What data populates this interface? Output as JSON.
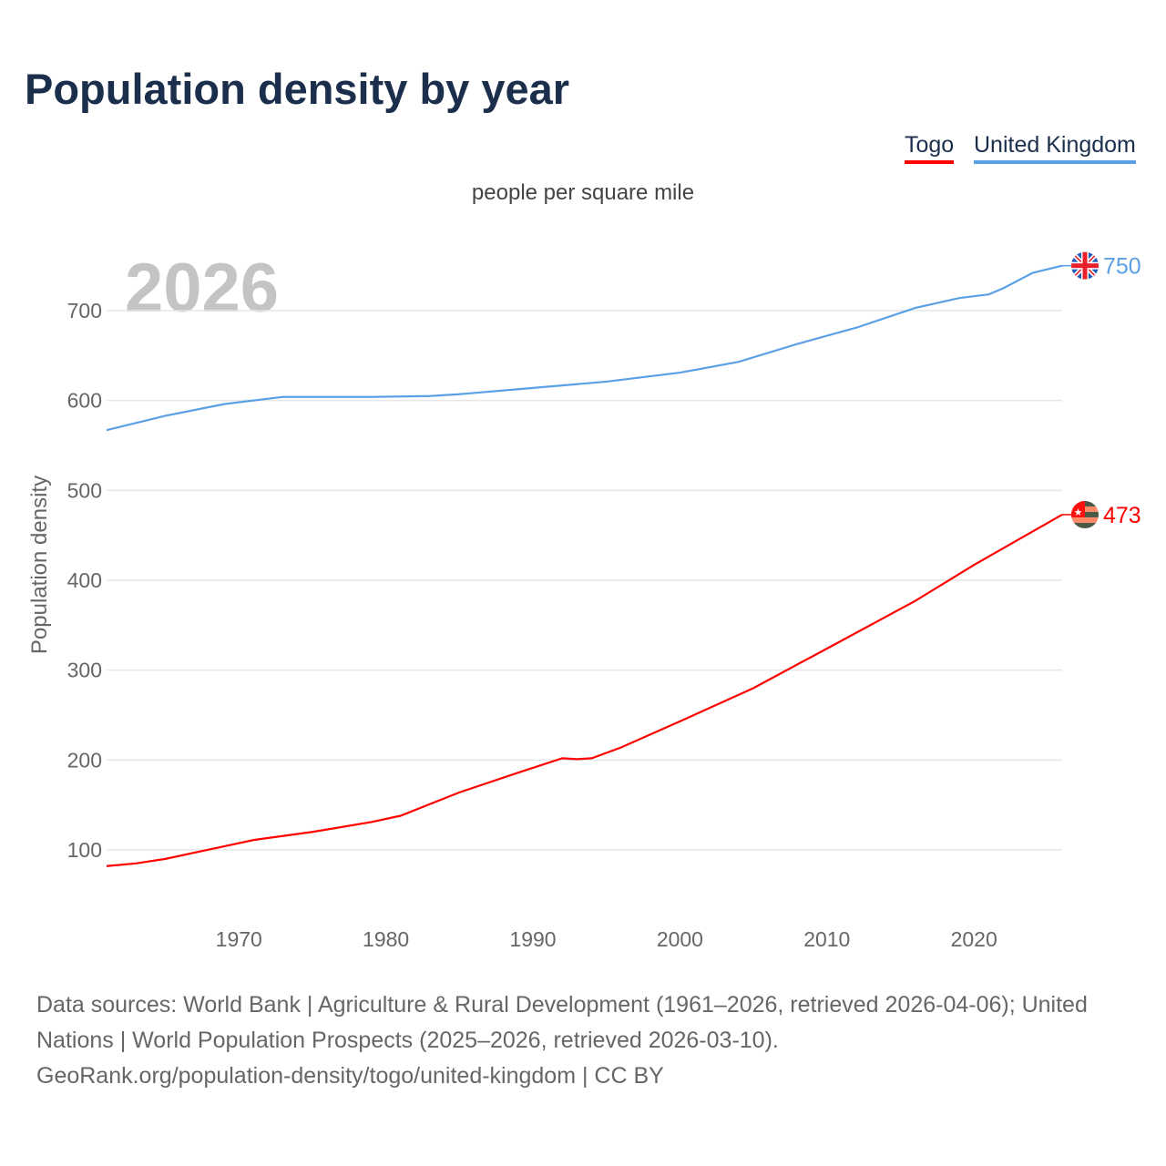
{
  "title": "Population density by year",
  "subtitle": "people per square mile",
  "year_watermark": "2026",
  "footer": {
    "line1": "Data sources: World Bank | Agriculture & Rural Development (1961–2026, retrieved 2026-04-06); United Nations | World Population Prospects (2025–2026, retrieved 2026-03-10).",
    "line2": "GeoRank.org/population-density/togo/united-kingdom | CC BY"
  },
  "chart_data": {
    "type": "line",
    "title": "Population density by year",
    "ylabel": "Population density",
    "xlabel": "",
    "xlim": [
      1961,
      2026
    ],
    "ylim": [
      50,
      760
    ],
    "yticks": [
      100,
      200,
      300,
      400,
      500,
      600,
      700
    ],
    "xticks": [
      1970,
      1980,
      1990,
      2000,
      2010,
      2020
    ],
    "grid": true,
    "legend_position": "top-right",
    "series": [
      {
        "name": "Togo",
        "color": "#ff0000",
        "end_label": "473",
        "flag": "togo-flag",
        "points": [
          [
            1961,
            82
          ],
          [
            1963,
            85
          ],
          [
            1965,
            90
          ],
          [
            1967,
            97
          ],
          [
            1969,
            104
          ],
          [
            1971,
            111
          ],
          [
            1975,
            120
          ],
          [
            1979,
            131
          ],
          [
            1981,
            138
          ],
          [
            1985,
            164
          ],
          [
            1989,
            186
          ],
          [
            1992,
            202
          ],
          [
            1993,
            201
          ],
          [
            1994,
            202
          ],
          [
            1996,
            214
          ],
          [
            2000,
            243
          ],
          [
            2005,
            280
          ],
          [
            2010,
            324
          ],
          [
            2016,
            377
          ],
          [
            2020,
            417
          ],
          [
            2026,
            473
          ]
        ]
      },
      {
        "name": "United Kingdom",
        "color": "#5aa0e6",
        "end_label": "750",
        "flag": "uk-flag",
        "points": [
          [
            1961,
            567
          ],
          [
            1965,
            583
          ],
          [
            1969,
            596
          ],
          [
            1973,
            604
          ],
          [
            1979,
            604
          ],
          [
            1983,
            605
          ],
          [
            1985,
            607
          ],
          [
            1990,
            614
          ],
          [
            1995,
            621
          ],
          [
            2000,
            631
          ],
          [
            2004,
            643
          ],
          [
            2008,
            663
          ],
          [
            2012,
            681
          ],
          [
            2016,
            703
          ],
          [
            2019,
            714
          ],
          [
            2021,
            718
          ],
          [
            2022,
            725
          ],
          [
            2024,
            742
          ],
          [
            2026,
            750
          ]
        ]
      }
    ]
  }
}
